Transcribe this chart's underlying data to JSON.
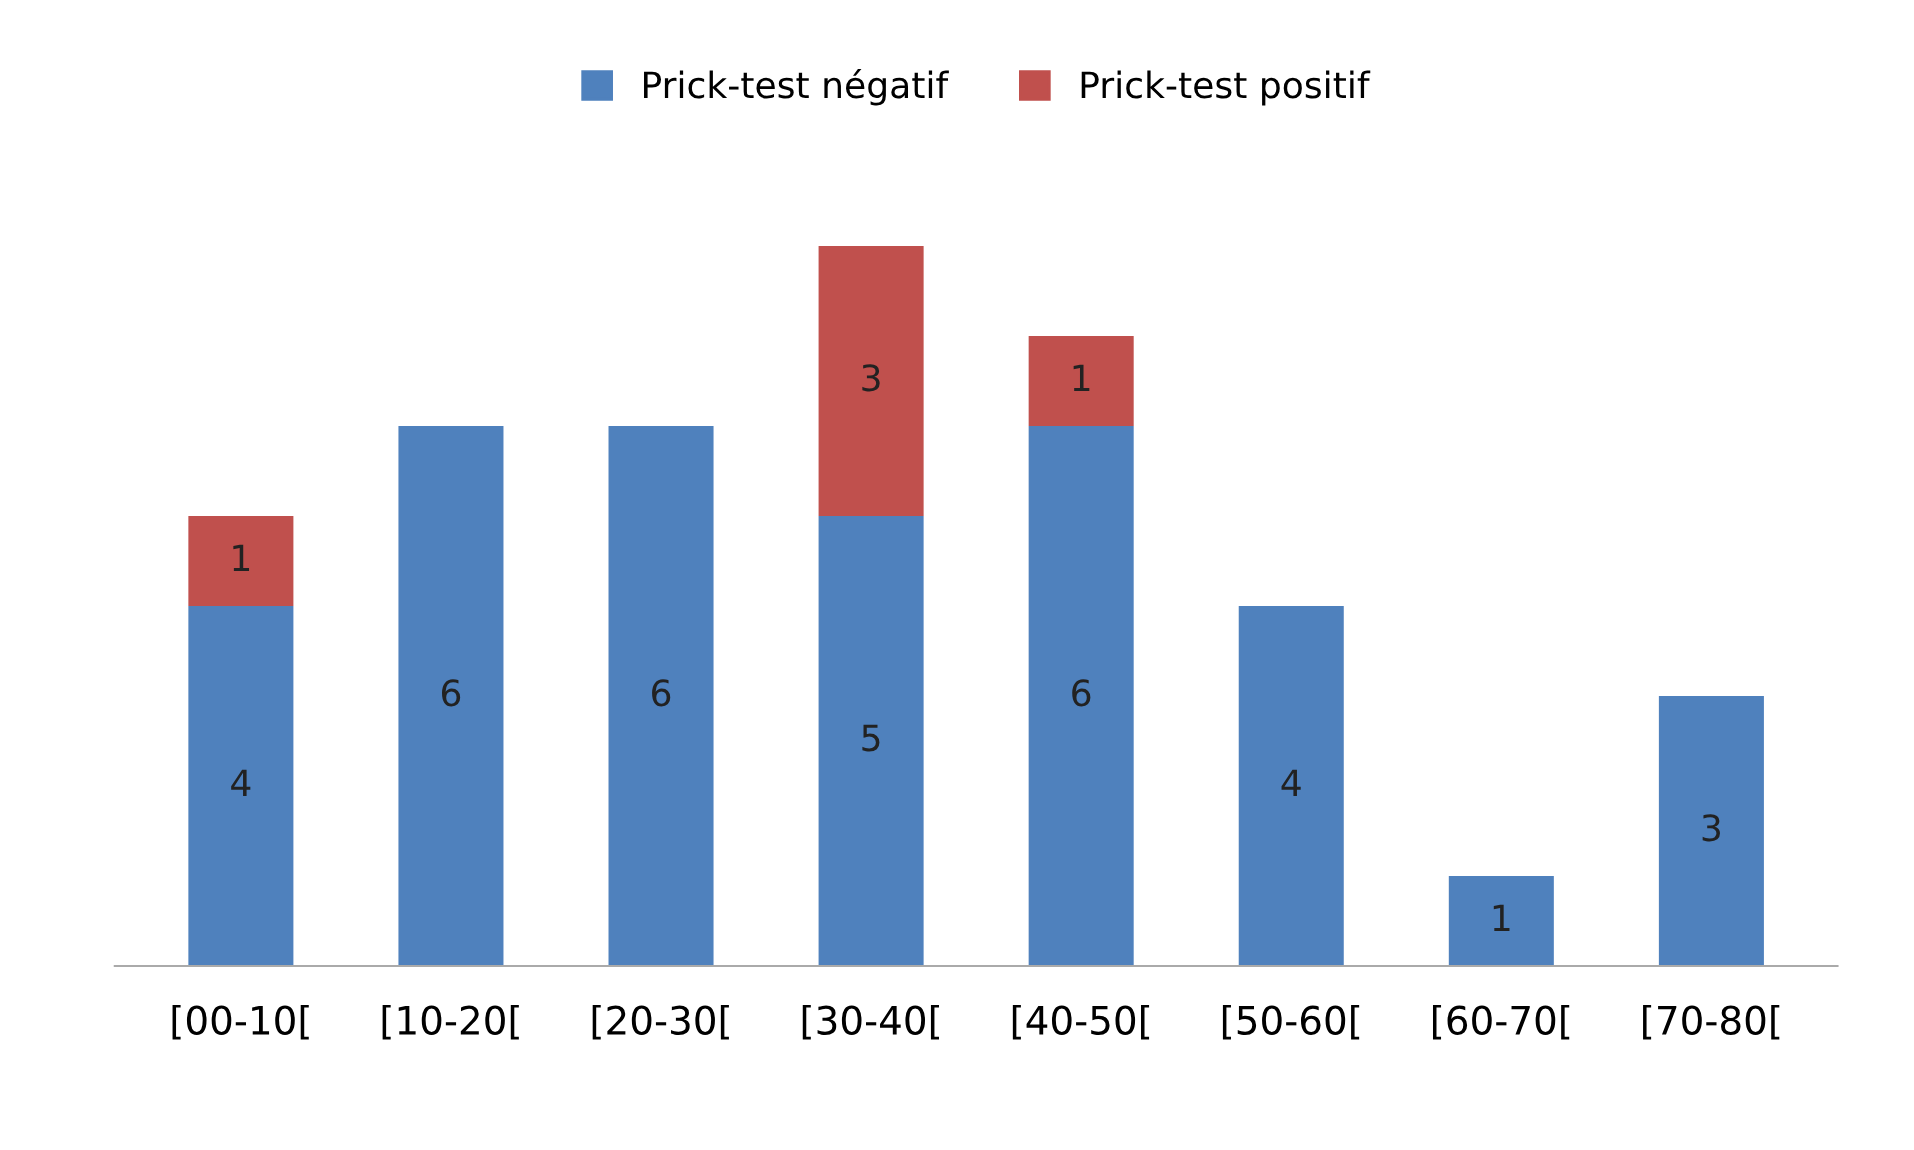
{
  "chart_data": {
    "type": "bar",
    "stacked": true,
    "categories": [
      "[00-10[",
      "[10-20[",
      "[20-30[",
      "[30-40[",
      "[40-50[",
      "[50-60[",
      "[60-70[",
      "[70-80["
    ],
    "series": [
      {
        "name": "Prick-test négatif",
        "color": "#4f81bd",
        "values": [
          4,
          6,
          6,
          5,
          6,
          4,
          1,
          3
        ]
      },
      {
        "name": "Prick-test positif",
        "color": "#c0504d",
        "values": [
          1,
          null,
          null,
          3,
          1,
          null,
          null,
          null
        ]
      }
    ],
    "data_labels": true,
    "legend": "top",
    "grid": false,
    "tick_labels": "x"
  }
}
